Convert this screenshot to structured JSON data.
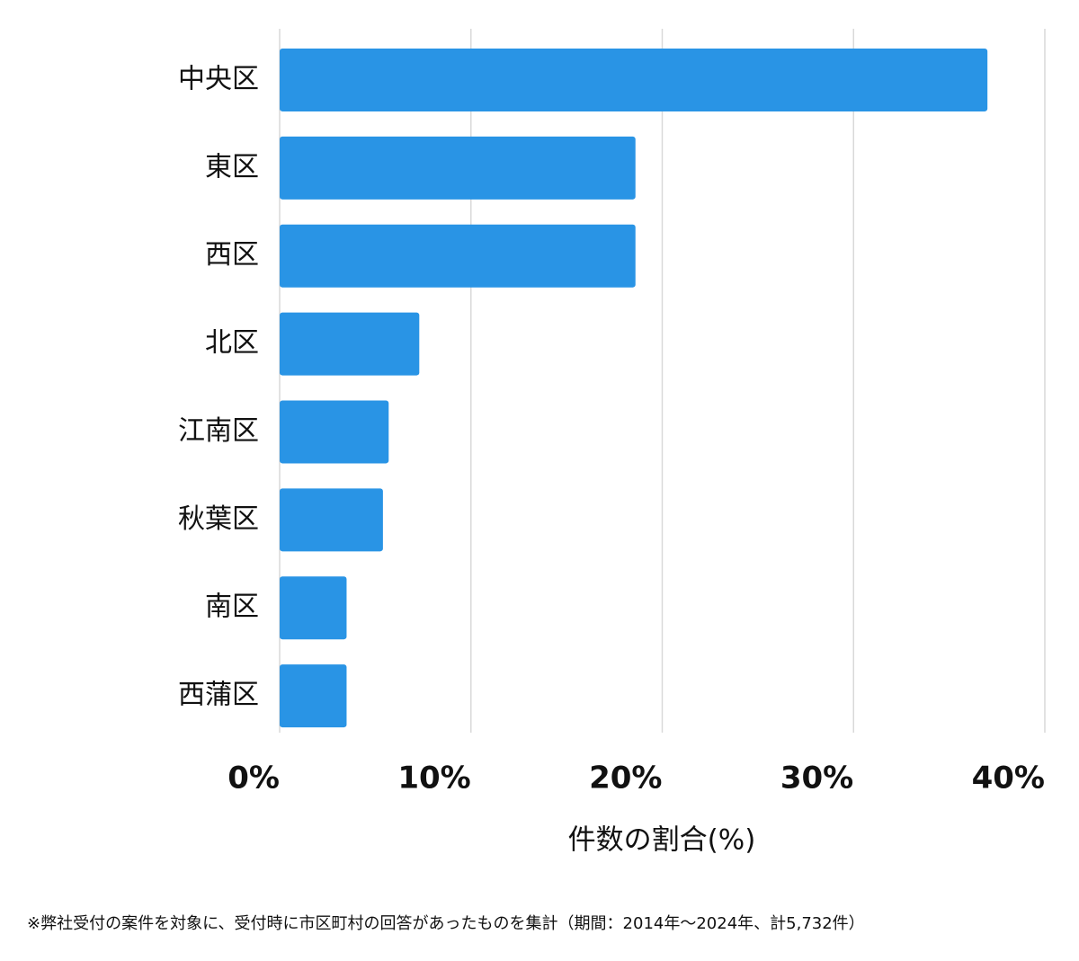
{
  "chart_data": {
    "type": "bar",
    "orientation": "horizontal",
    "categories": [
      "中央区",
      "東区",
      "西区",
      "北区",
      "江南区",
      "秋葉区",
      "南区",
      "西蒲区"
    ],
    "values": [
      37.0,
      18.6,
      18.6,
      7.3,
      5.7,
      5.4,
      3.5,
      3.5
    ],
    "color": "#2994e5",
    "xlim": [
      0,
      40
    ],
    "xticks": [
      {
        "value": 0,
        "label": "0%"
      },
      {
        "value": 10,
        "label": "10%"
      },
      {
        "value": 20,
        "label": "20%"
      },
      {
        "value": 30,
        "label": "30%"
      },
      {
        "value": 40,
        "label": "40%"
      }
    ],
    "xlabel": "件数の割合(%)",
    "grid": true,
    "note": "※弊社受付の案件を対象に、受付時に市区町村の回答があったものを集計（期間：2014年～2024年、計5,732件）"
  }
}
